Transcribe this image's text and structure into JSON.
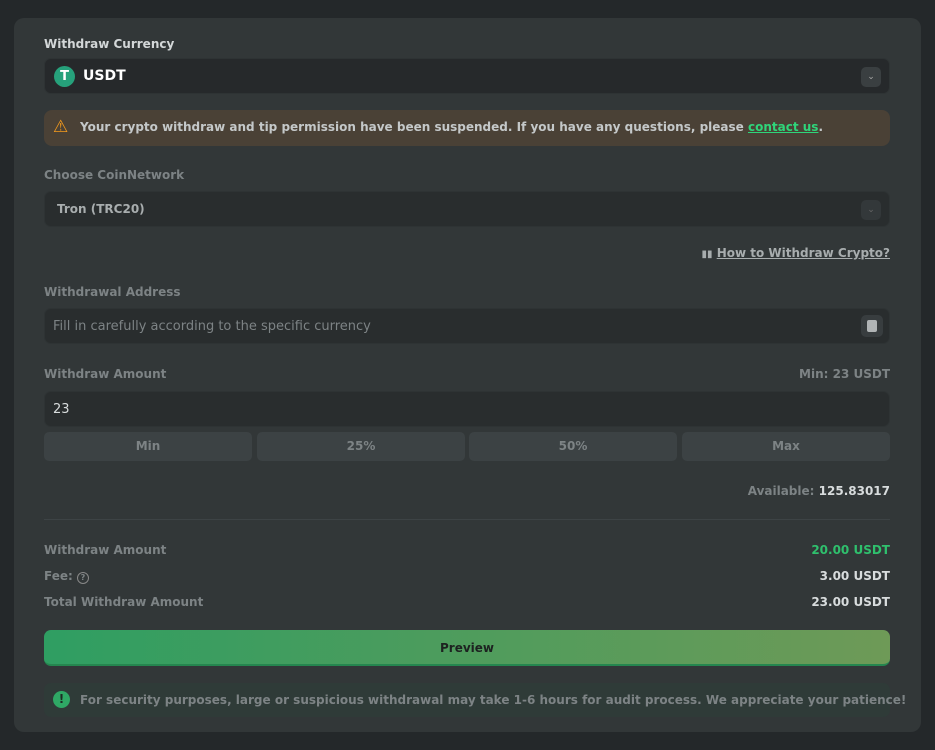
{
  "currency": {
    "label": "Withdraw Currency",
    "value": "USDT",
    "icon": "tether-icon"
  },
  "warning": {
    "text": "Your crypto withdraw and tip permission have been suspended. If you have any questions, please ",
    "link": "contact us",
    "end": "."
  },
  "network": {
    "label": "Choose CoinNetwork",
    "value": "Tron (TRC20)"
  },
  "help_link": "How to Withdraw Crypto?",
  "address": {
    "label": "Withdrawal Address",
    "placeholder": "Fill in carefully according to the specific currency"
  },
  "amount": {
    "label": "Withdraw Amount",
    "min": "Min: 23 USDT",
    "value": "23",
    "quick": [
      "Min",
      "25%",
      "50%",
      "Max"
    ],
    "available_label": "Available:",
    "available": "125.83017"
  },
  "summary": [
    {
      "label": "Withdraw Amount",
      "value": "20.00 USDT"
    },
    {
      "label": "Fee:",
      "value": "3.00 USDT"
    },
    {
      "label": "Total Withdraw Amount",
      "value": "23.00 USDT"
    }
  ],
  "preview": "Preview",
  "notice": "For security purposes, large or suspicious withdrawal may take 1-6 hours for audit process. We appreciate your patience!",
  "colors": {
    "accent": "#2f9e62",
    "warning": "#f59b1d"
  }
}
